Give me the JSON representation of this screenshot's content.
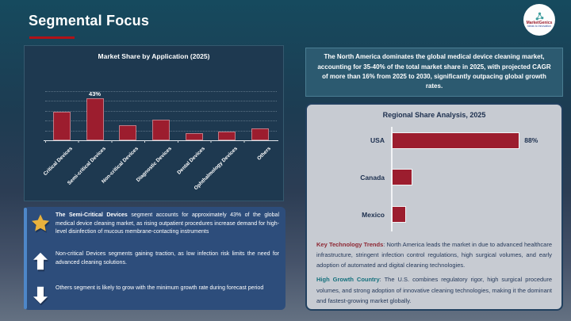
{
  "slide": {
    "title": "Segmental Focus"
  },
  "logo": {
    "name": "MarketGenics",
    "tagline": "Ideas to Innovation"
  },
  "colors": {
    "accent_red": "#b01218",
    "bar_maroon": "#9c1d2e",
    "chart_panel_navy": "#1e3950",
    "insight_blue": "#2d4d7b",
    "insight_accent_blue": "#4e87c8",
    "highlight_teal": "#2c5a70",
    "regional_gray": "#c7cbd2",
    "navy_text": "#1c2f4e",
    "star_gold": "#e9b23d"
  },
  "chart_data": [
    {
      "type": "bar",
      "title": "Market Share by Application (2025)",
      "categories": [
        "Critical Devices",
        "Semi-critical Devices",
        "Non-critical Devices",
        "Diagnostic Devices",
        "Dental Devices",
        "Ophthalmology Devices",
        "Others"
      ],
      "values": [
        29,
        43,
        15,
        21,
        7,
        9,
        12
      ],
      "data_labels": [
        "",
        "43%",
        "",
        "",
        "",
        "",
        ""
      ],
      "ylim": [
        0,
        50
      ],
      "grid": true,
      "legend": false,
      "bar_color": "#9c1d2e"
    },
    {
      "type": "bar",
      "orientation": "horizontal",
      "title": "Regional Share Analysis, 2025",
      "categories": [
        "USA",
        "Canada",
        "Mexico"
      ],
      "values": [
        88,
        13,
        9
      ],
      "data_labels": [
        "88%",
        "",
        ""
      ],
      "xlim": [
        0,
        100
      ],
      "grid": false,
      "legend": false,
      "bar_color": "#9c1d2e"
    }
  ],
  "highlight_box": {
    "text": "The North America dominates the global medical device cleaning market, accounting for 35-40% of the total market share in 2025, with projected CAGR of more than 16% from 2025 to 2030, significantly outpacing global growth rates."
  },
  "insight_box": {
    "items": [
      {
        "icon": "star-icon",
        "bold": "The Semi-Critical Devices",
        "text": " segment accounts for approximately 43% of the global medical device cleaning market, as rising outpatient procedures increase demand for high-level disinfection of mucous membrane-contacting instruments"
      },
      {
        "icon": "up-arrow-icon",
        "bold": "",
        "text": "Non-critical Devices segments gaining traction, as low infection risk limits the need for advanced cleaning solutions."
      },
      {
        "icon": "down-arrow-icon",
        "bold": "",
        "text": "Others segment is likely to grow with the minimum growth rate during forecast period"
      }
    ]
  },
  "regional_panel": {
    "paragraphs": [
      {
        "label": "Key Technology Trends",
        "label_color": "#8e2733",
        "text": ": North America leads the market in due to advanced healthcare infrastructure, stringent infection control regulations, high surgical volumes, and early adoption of automated and digital cleaning technologies."
      },
      {
        "label": "High Growth Country",
        "label_color": "#13707c",
        "text": ": The U.S. combines regulatory rigor, high surgical procedure volumes, and strong adoption of innovative cleaning technologies, making it the dominant and fastest-growing market globally."
      }
    ]
  }
}
